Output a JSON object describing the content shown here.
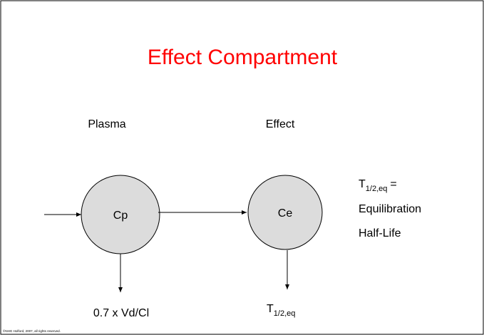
{
  "title": "Effect Compartment",
  "compartments": [
    {
      "heading": "Plasma",
      "label": "Cp",
      "elimination": "0.7 x Vd/Cl"
    },
    {
      "heading": "Effect",
      "label": "Ce",
      "elimination": {
        "symbol": "T",
        "subscript": "1/2,eq"
      }
    }
  ],
  "note": {
    "symbol": "T",
    "subscript": "1/2,eq",
    "suffix": "=",
    "lines": [
      "Equilibration",
      "Half-Life"
    ]
  },
  "footer": "©NHG Holford, 2007, all rights reserved."
}
